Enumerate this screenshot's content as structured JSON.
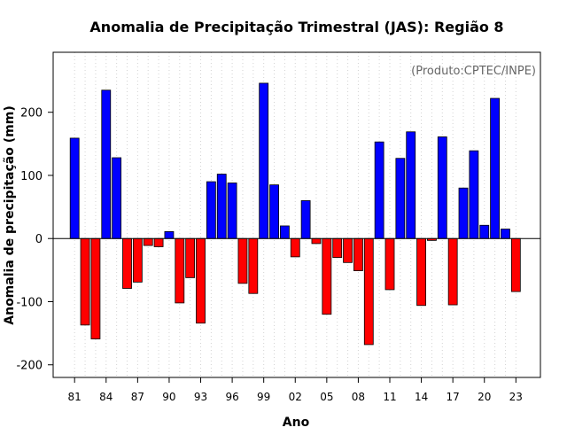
{
  "chart_data": {
    "type": "bar",
    "title": "Anomalia de Precipitação Trimestral (JAS): Região 8",
    "credit": "(Produto:CPTEC/INPE)",
    "xlabel": "Ano",
    "ylabel": "Anomalia de precipitação (mm)",
    "ylim": [
      -220,
      295
    ],
    "yticks": [
      -200,
      -100,
      0,
      100,
      200
    ],
    "grid": "vertical dotted",
    "categories": [
      "81",
      "82",
      "83",
      "84",
      "85",
      "86",
      "87",
      "88",
      "89",
      "90",
      "91",
      "92",
      "93",
      "94",
      "95",
      "96",
      "97",
      "98",
      "99",
      "00",
      "01",
      "02",
      "03",
      "04",
      "05",
      "06",
      "07",
      "08",
      "09",
      "10",
      "11",
      "12",
      "13",
      "14",
      "15",
      "16",
      "17",
      "18",
      "19",
      "20",
      "21",
      "22",
      "23"
    ],
    "tick_labels": [
      "81",
      "84",
      "87",
      "90",
      "93",
      "96",
      "99",
      "02",
      "05",
      "08",
      "11",
      "14",
      "17",
      "20",
      "23"
    ],
    "values": [
      159,
      -137,
      -159,
      235,
      128,
      -79,
      -69,
      -11,
      -13,
      11,
      -102,
      -62,
      -134,
      90,
      102,
      88,
      -71,
      -87,
      246,
      85,
      20,
      -29,
      60,
      -8,
      -120,
      -30,
      -38,
      -51,
      -168,
      153,
      -81,
      127,
      169,
      -106,
      -3,
      161,
      -105,
      80,
      139,
      21,
      222,
      15,
      -84
    ],
    "colors": {
      "positive": "#0000ff",
      "negative": "#ff0000",
      "edge": "#000000",
      "grid": "#d3d3d3"
    }
  }
}
